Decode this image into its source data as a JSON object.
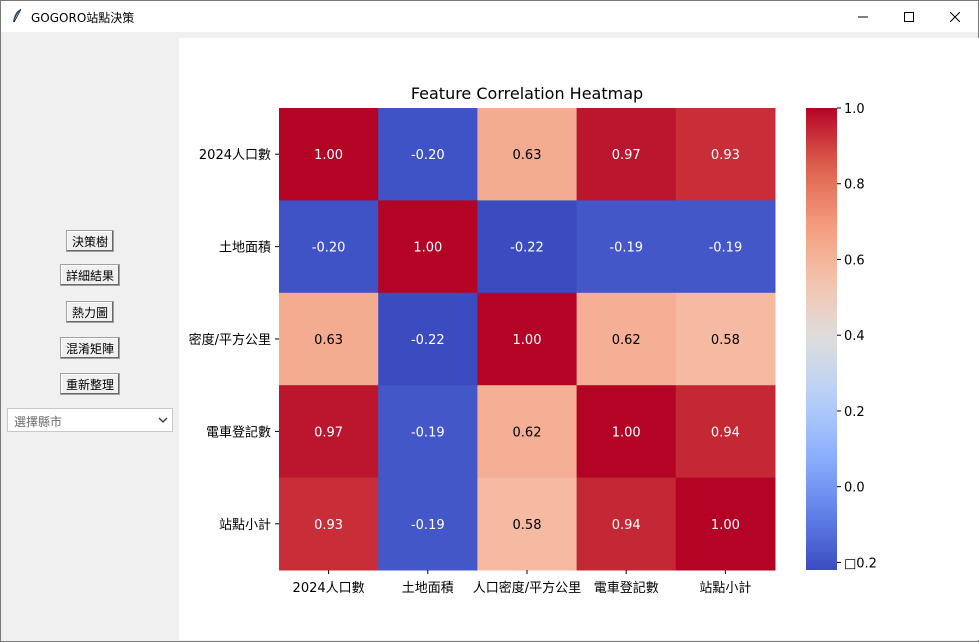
{
  "window": {
    "title": "GOGORO站點決策"
  },
  "sidebar": {
    "buttons": [
      {
        "label": "決策樹"
      },
      {
        "label": "詳細結果"
      },
      {
        "label": "熱力圖"
      },
      {
        "label": "混淆矩陣"
      },
      {
        "label": "重新整理"
      }
    ],
    "county_select": {
      "value": "選擇縣市"
    }
  },
  "chart_data": {
    "type": "heatmap",
    "title": "Feature Correlation Heatmap",
    "row_labels": [
      "2024人口數",
      "土地面積",
      "密度/平方公里",
      "電車登記數",
      "站點小計"
    ],
    "col_labels": [
      "2024人口數",
      "土地面積",
      "人口密度/平方公里",
      "電車登記數",
      "站點小計"
    ],
    "values": [
      [
        1.0,
        -0.2,
        0.63,
        0.97,
        0.93
      ],
      [
        -0.2,
        1.0,
        -0.22,
        -0.19,
        -0.19
      ],
      [
        0.63,
        -0.22,
        1.0,
        0.62,
        0.58
      ],
      [
        0.97,
        -0.19,
        0.62,
        1.0,
        0.94
      ],
      [
        0.93,
        -0.19,
        0.58,
        0.94,
        1.0
      ]
    ],
    "cell_labels": [
      [
        "1.00",
        "-0.20",
        "0.63",
        "0.97",
        "0.93"
      ],
      [
        "-0.20",
        "1.00",
        "-0.22",
        "-0.19",
        "-0.19"
      ],
      [
        "0.63",
        "-0.22",
        "1.00",
        "0.62",
        "0.58"
      ],
      [
        "0.97",
        "-0.19",
        "0.62",
        "1.00",
        "0.94"
      ],
      [
        "0.93",
        "-0.19",
        "0.58",
        "0.94",
        "1.00"
      ]
    ],
    "colormap": "coolwarm",
    "vmin": -0.22,
    "vmax": 1.0,
    "colorbar_ticks": [
      1.0,
      0.8,
      0.6,
      0.4,
      0.2,
      0.0,
      -0.2
    ],
    "colorbar_tick_labels": [
      "1.0",
      "0.8",
      "0.6",
      "0.4",
      "0.2",
      "0.0",
      "□0.2"
    ]
  }
}
